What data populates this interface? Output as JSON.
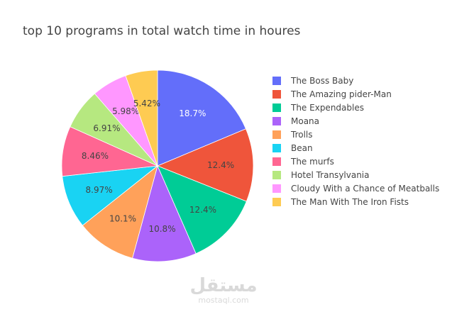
{
  "chart_data": {
    "type": "pie",
    "title": "top 10 programs in total watch time in houres",
    "legend_position": "right",
    "slices": [
      {
        "label": "The Boss Baby",
        "percent": 18.7,
        "text": "18.7%",
        "color": "#636efa",
        "text_color": "#ffffff"
      },
      {
        "label": "The Amazing pider-Man",
        "percent": 12.4,
        "text": "12.4%",
        "color": "#ef553b",
        "text_color": "#444444"
      },
      {
        "label": "The Expendables",
        "percent": 12.4,
        "text": "12.4%",
        "color": "#00cc96",
        "text_color": "#444444"
      },
      {
        "label": "Moana",
        "percent": 10.8,
        "text": "10.8%",
        "color": "#ab63fa",
        "text_color": "#444444"
      },
      {
        "label": "Trolls",
        "percent": 10.1,
        "text": "10.1%",
        "color": "#ffa15a",
        "text_color": "#444444"
      },
      {
        "label": "Bean",
        "percent": 8.97,
        "text": "8.97%",
        "color": "#19d3f3",
        "text_color": "#444444"
      },
      {
        "label": "The murfs",
        "percent": 8.46,
        "text": "8.46%",
        "color": "#ff6692",
        "text_color": "#444444"
      },
      {
        "label": "Hotel Transylvania",
        "percent": 6.91,
        "text": "6.91%",
        "color": "#b6e880",
        "text_color": "#444444"
      },
      {
        "label": "Cloudy With a Chance of Meatballs",
        "percent": 5.98,
        "text": "5.98%",
        "color": "#ff97ff",
        "text_color": "#444444"
      },
      {
        "label": "The Man With The Iron Fists",
        "percent": 5.42,
        "text": "5.42%",
        "color": "#fecb52",
        "text_color": "#444444"
      }
    ]
  },
  "watermark": {
    "arabic": "مستقل",
    "latin": "mostaql.com"
  }
}
